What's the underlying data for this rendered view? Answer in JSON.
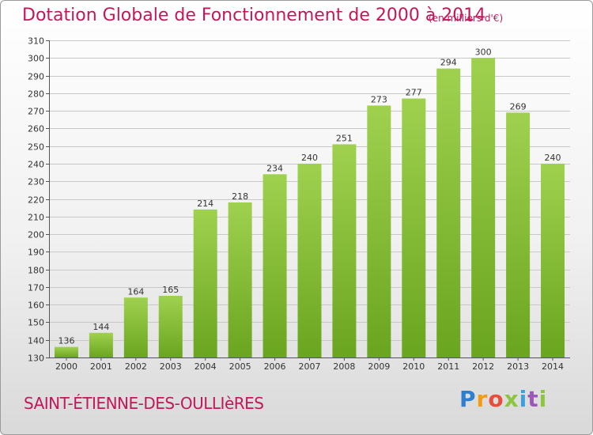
{
  "header": {
    "title": "Dotation Globale de Fonctionnement de 2000 à 2014",
    "unit": "(en milliers d'€)"
  },
  "footer": {
    "commune": "SAINT-ÉTIENNE-DES-OULLIèRES",
    "logo": [
      "P",
      "r",
      "o",
      "x",
      "i",
      "t",
      "i"
    ]
  },
  "colors": {
    "title": "#c2185b",
    "bar_light": "#9fd14f",
    "bar_dark": "#6aa51f",
    "grid": "#c8c8c8"
  },
  "chart_data": {
    "type": "bar",
    "categories": [
      "2000",
      "2001",
      "2002",
      "2003",
      "2004",
      "2005",
      "2006",
      "2007",
      "2008",
      "2009",
      "2010",
      "2011",
      "2012",
      "2013",
      "2014"
    ],
    "values": [
      136,
      144,
      164,
      165,
      214,
      218,
      234,
      240,
      251,
      273,
      277,
      294,
      300,
      269,
      240
    ],
    "ylim": [
      130,
      310
    ],
    "yticks": [
      130,
      140,
      150,
      160,
      170,
      180,
      190,
      200,
      210,
      220,
      230,
      240,
      250,
      260,
      270,
      280,
      290,
      300,
      310
    ],
    "grid": true,
    "data_labels": true
  }
}
